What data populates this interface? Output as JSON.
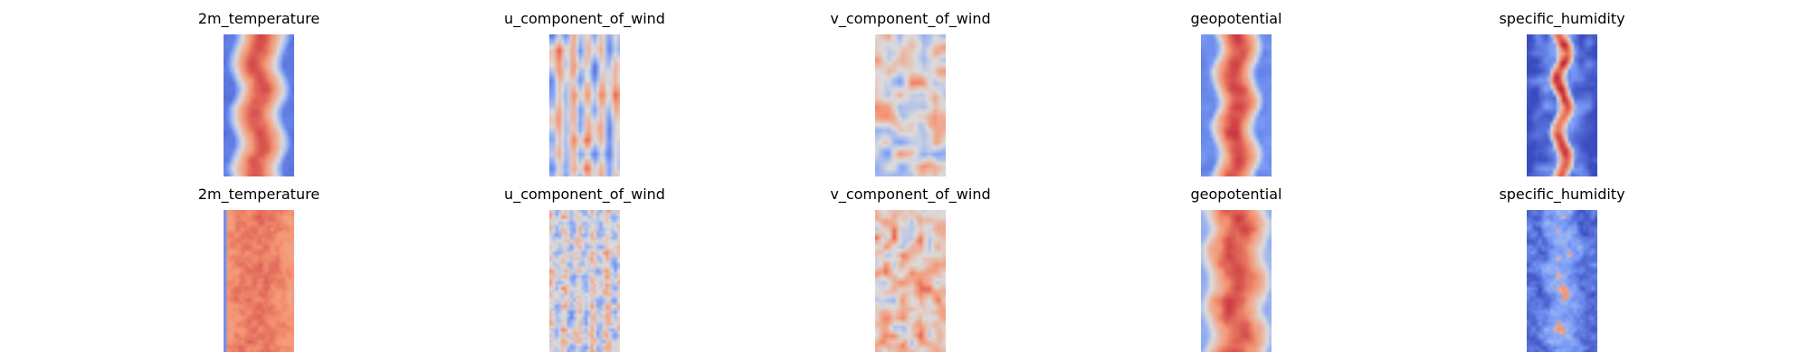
{
  "chart_data": [
    {
      "type": "heatmap",
      "title": "2m_temperature",
      "row": 1,
      "col": 1,
      "colormap": "coolwarm",
      "pattern": {
        "base": 0.86,
        "band_width": 0.42,
        "edge": 0.14,
        "noise": 0.05,
        "seed": 11,
        "coarse": 3
      }
    },
    {
      "type": "heatmap",
      "title": "u_component_of_wind",
      "row": 1,
      "col": 2,
      "colormap": "coolwarm",
      "pattern": {
        "base": 0.5,
        "band_width": 0.0,
        "edge": 0.5,
        "noise": 0.32,
        "seed": 23,
        "coarse": 5,
        "streak": 0.25
      }
    },
    {
      "type": "heatmap",
      "title": "v_component_of_wind",
      "row": 1,
      "col": 3,
      "colormap": "coolwarm",
      "pattern": {
        "base": 0.52,
        "band_width": 0.0,
        "edge": 0.52,
        "noise": 0.36,
        "seed": 37,
        "coarse": 4
      }
    },
    {
      "type": "heatmap",
      "title": "geopotential",
      "row": 1,
      "col": 4,
      "colormap": "coolwarm",
      "pattern": {
        "base": 0.88,
        "band_width": 0.36,
        "edge": 0.2,
        "noise": 0.06,
        "seed": 41,
        "coarse": 3
      }
    },
    {
      "type": "heatmap",
      "title": "specific_humidity",
      "row": 1,
      "col": 5,
      "colormap": "coolwarm",
      "pattern": {
        "base": 0.88,
        "band_width": 0.16,
        "edge": 0.05,
        "noise": 0.16,
        "seed": 53,
        "coarse": 3,
        "outer": 0.02
      }
    },
    {
      "type": "heatmap",
      "title": "2m_temperature",
      "row": 2,
      "col": 1,
      "colormap": "coolwarm",
      "pattern": {
        "base": 0.8,
        "band_width": 0.5,
        "edge": 0.72,
        "noise": 0.06,
        "seed": 61,
        "coarse": 2,
        "leftcool": 0.08
      }
    },
    {
      "type": "heatmap",
      "title": "u_component_of_wind",
      "row": 2,
      "col": 2,
      "colormap": "coolwarm",
      "pattern": {
        "base": 0.48,
        "band_width": 0.0,
        "edge": 0.48,
        "noise": 0.24,
        "seed": 71,
        "coarse": 2,
        "streak": 0.18
      }
    },
    {
      "type": "heatmap",
      "title": "v_component_of_wind",
      "row": 2,
      "col": 3,
      "colormap": "coolwarm",
      "pattern": {
        "base": 0.58,
        "band_width": 0.0,
        "edge": 0.58,
        "noise": 0.3,
        "seed": 83,
        "coarse": 3
      }
    },
    {
      "type": "heatmap",
      "title": "geopotential",
      "row": 2,
      "col": 4,
      "colormap": "coolwarm",
      "pattern": {
        "base": 0.86,
        "band_width": 0.5,
        "edge": 0.32,
        "noise": 0.07,
        "seed": 97,
        "coarse": 3
      }
    },
    {
      "type": "heatmap",
      "title": "specific_humidity",
      "row": 2,
      "col": 5,
      "colormap": "coolwarm",
      "pattern": {
        "base": 0.3,
        "band_width": 0.3,
        "edge": 0.12,
        "noise": 0.14,
        "seed": 101,
        "coarse": 2,
        "hot": 0.05
      }
    }
  ]
}
